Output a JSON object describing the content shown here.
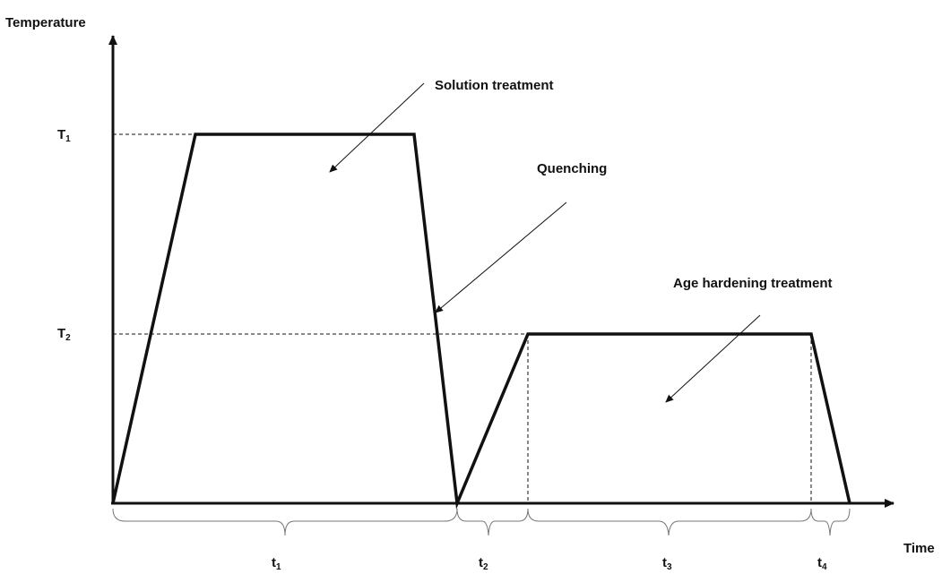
{
  "colors": {
    "line": "#111111",
    "background": "#ffffff",
    "brace": "#777777"
  },
  "axes": {
    "y_title": "Temperature",
    "x_title": "Time"
  },
  "temperature_levels": [
    {
      "main": "T",
      "sub": "1"
    },
    {
      "main": "T",
      "sub": "2"
    }
  ],
  "time_intervals": [
    {
      "main": "t",
      "sub": "1"
    },
    {
      "main": "t",
      "sub": "2"
    },
    {
      "main": "t",
      "sub": "3"
    },
    {
      "main": "t",
      "sub": "4"
    }
  ],
  "annotations": {
    "solution": "Solution treatment",
    "quenching": "Quenching",
    "aging": "Age hardening treatment"
  }
}
